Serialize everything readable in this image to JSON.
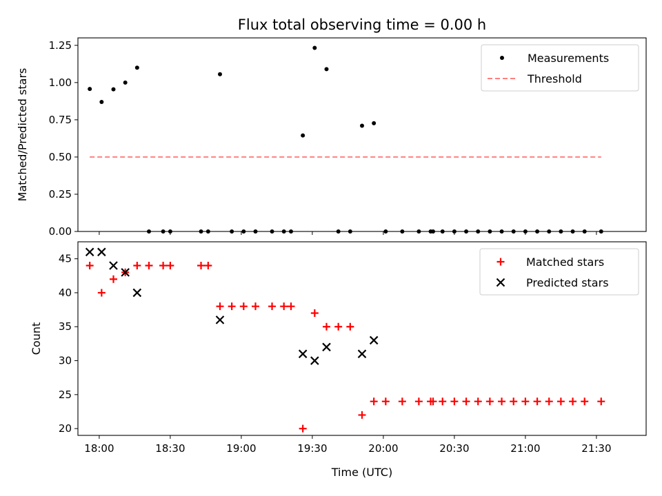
{
  "chart_data": [
    {
      "type": "scatter",
      "panel": "top",
      "title": "Flux total observing time = 0.00 h",
      "xlabel": "",
      "ylabel": "Matched/Predicted stars",
      "ylim": [
        0,
        1.3
      ],
      "yticks": [
        0.0,
        0.25,
        0.5,
        0.75,
        1.0,
        1.25
      ],
      "ytick_labels": [
        "0.00",
        "0.25",
        "0.50",
        "0.75",
        "1.00",
        "1.25"
      ],
      "xlim": [
        "17:51",
        "21:51"
      ],
      "xticks": [
        "18:00",
        "18:30",
        "19:00",
        "19:30",
        "20:00",
        "20:30",
        "21:00",
        "21:30"
      ],
      "legend": {
        "placement": "top-right",
        "entries": [
          "Measurements",
          "Threshold"
        ]
      },
      "series": [
        {
          "name": "Measurements",
          "color": "#000000",
          "marker": "dot",
          "points": [
            [
              "17:56",
              0.957
            ],
            [
              "18:01",
              0.87
            ],
            [
              "18:06",
              0.955
            ],
            [
              "18:11",
              1.0
            ],
            [
              "18:16",
              1.1
            ],
            [
              "18:21",
              0
            ],
            [
              "18:27",
              0
            ],
            [
              "18:30",
              0
            ],
            [
              "18:43",
              0
            ],
            [
              "18:46",
              0
            ],
            [
              "18:51",
              1.056
            ],
            [
              "18:56",
              0
            ],
            [
              "19:01",
              0
            ],
            [
              "19:06",
              0
            ],
            [
              "19:13",
              0
            ],
            [
              "19:18",
              0
            ],
            [
              "19:21",
              0
            ],
            [
              "19:26",
              0.645
            ],
            [
              "19:31",
              1.233
            ],
            [
              "19:36",
              1.09
            ],
            [
              "19:41",
              0
            ],
            [
              "19:46",
              0
            ],
            [
              "19:51",
              0.71
            ],
            [
              "19:56",
              0.727
            ],
            [
              "20:01",
              0
            ],
            [
              "20:08",
              0
            ],
            [
              "20:15",
              0
            ],
            [
              "20:20",
              0
            ],
            [
              "20:21",
              0
            ],
            [
              "20:25",
              0
            ],
            [
              "20:30",
              0
            ],
            [
              "20:35",
              0
            ],
            [
              "20:40",
              0
            ],
            [
              "20:45",
              0
            ],
            [
              "20:50",
              0
            ],
            [
              "20:55",
              0
            ],
            [
              "21:00",
              0
            ],
            [
              "21:05",
              0
            ],
            [
              "21:10",
              0
            ],
            [
              "21:15",
              0
            ],
            [
              "21:20",
              0
            ],
            [
              "21:25",
              0
            ],
            [
              "21:32",
              0
            ]
          ]
        },
        {
          "name": "Threshold",
          "color": "#ff7f7f",
          "style": "dashed",
          "points": [
            [
              "17:56",
              0.5
            ],
            [
              "21:32",
              0.5
            ]
          ]
        }
      ]
    },
    {
      "type": "scatter",
      "panel": "bottom",
      "title": "",
      "xlabel": "Time (UTC)",
      "ylabel": "Count",
      "ylim": [
        19,
        47.5
      ],
      "yticks": [
        20,
        25,
        30,
        35,
        40,
        45
      ],
      "ytick_labels": [
        "20",
        "25",
        "30",
        "35",
        "40",
        "45"
      ],
      "xlim": [
        "17:51",
        "21:51"
      ],
      "xticks": [
        "18:00",
        "18:30",
        "19:00",
        "19:30",
        "20:00",
        "20:30",
        "21:00",
        "21:30"
      ],
      "legend": {
        "placement": "top-right",
        "entries": [
          "Matched stars",
          "Predicted stars"
        ]
      },
      "series": [
        {
          "name": "Matched stars",
          "color": "#ff0000",
          "marker": "plus",
          "points": [
            [
              "17:56",
              44
            ],
            [
              "18:01",
              40
            ],
            [
              "18:06",
              42
            ],
            [
              "18:11",
              43
            ],
            [
              "18:16",
              44
            ],
            [
              "18:21",
              44
            ],
            [
              "18:27",
              44
            ],
            [
              "18:30",
              44
            ],
            [
              "18:43",
              44
            ],
            [
              "18:46",
              44
            ],
            [
              "18:51",
              38
            ],
            [
              "18:56",
              38
            ],
            [
              "19:01",
              38
            ],
            [
              "19:06",
              38
            ],
            [
              "19:13",
              38
            ],
            [
              "19:18",
              38
            ],
            [
              "19:21",
              38
            ],
            [
              "19:26",
              20
            ],
            [
              "19:31",
              37
            ],
            [
              "19:36",
              35
            ],
            [
              "19:41",
              35
            ],
            [
              "19:46",
              35
            ],
            [
              "19:51",
              22
            ],
            [
              "19:56",
              24
            ],
            [
              "20:01",
              24
            ],
            [
              "20:08",
              24
            ],
            [
              "20:15",
              24
            ],
            [
              "20:20",
              24
            ],
            [
              "20:21",
              24
            ],
            [
              "20:25",
              24
            ],
            [
              "20:30",
              24
            ],
            [
              "20:35",
              24
            ],
            [
              "20:40",
              24
            ],
            [
              "20:45",
              24
            ],
            [
              "20:50",
              24
            ],
            [
              "20:55",
              24
            ],
            [
              "21:00",
              24
            ],
            [
              "21:05",
              24
            ],
            [
              "21:10",
              24
            ],
            [
              "21:15",
              24
            ],
            [
              "21:20",
              24
            ],
            [
              "21:25",
              24
            ],
            [
              "21:32",
              24
            ]
          ]
        },
        {
          "name": "Predicted stars",
          "color": "#000000",
          "marker": "x",
          "points": [
            [
              "17:56",
              46
            ],
            [
              "18:01",
              46
            ],
            [
              "18:06",
              44
            ],
            [
              "18:11",
              43
            ],
            [
              "18:16",
              40
            ],
            [
              "18:51",
              36
            ],
            [
              "19:26",
              31
            ],
            [
              "19:31",
              30
            ],
            [
              "19:36",
              32
            ],
            [
              "19:51",
              31
            ],
            [
              "19:56",
              33
            ]
          ]
        }
      ]
    }
  ]
}
